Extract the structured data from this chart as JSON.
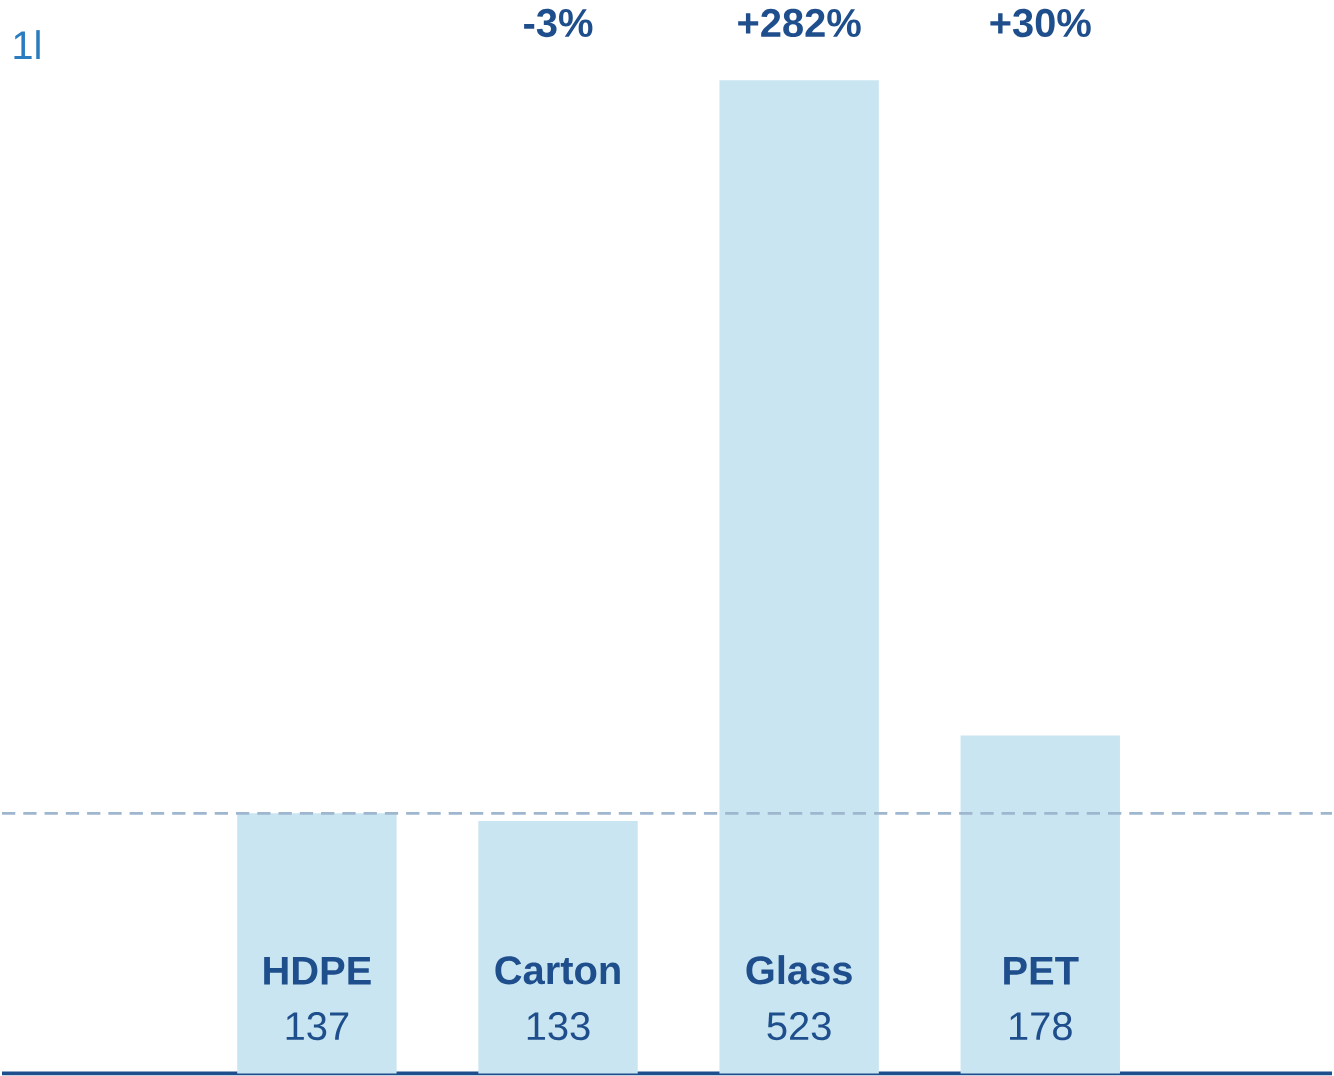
{
  "chart_data": {
    "type": "bar",
    "title": "1l",
    "categories": [
      "HDPE",
      "Carton",
      "Glass",
      "PET"
    ],
    "values": [
      137,
      133,
      523,
      178
    ],
    "color": "#c9e5f1",
    "data_labels": true,
    "annotations": [
      "-3%",
      "+282%",
      "+30%"
    ],
    "ref_lines": [
      {
        "axis": "y",
        "value": 137,
        "color": "#9fb6cf",
        "line_style": "dashed"
      }
    ]
  }
}
